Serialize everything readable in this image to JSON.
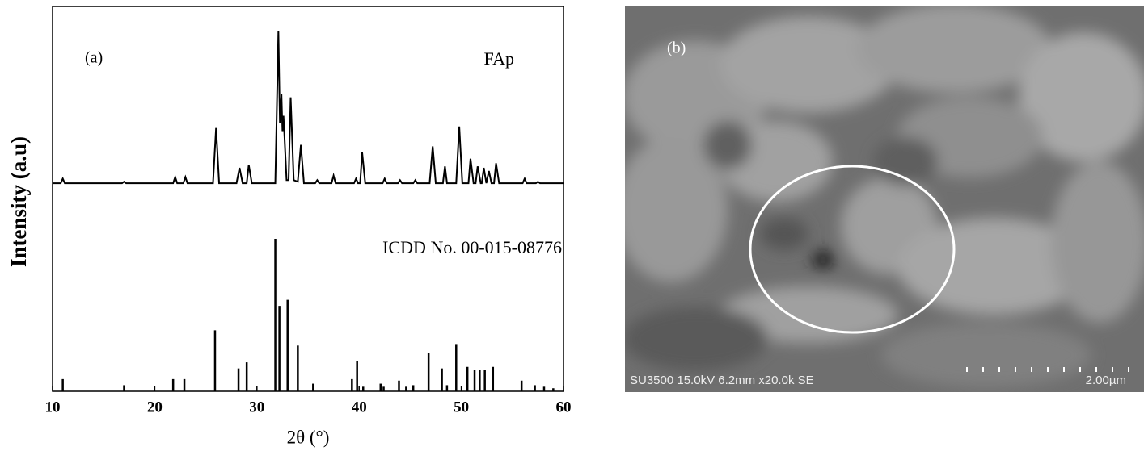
{
  "chart_data": {
    "type": "line",
    "panel_label": "(a)",
    "xlabel": "2θ (°)",
    "ylabel": "Intensity (a.u)",
    "xlim": [
      10,
      60
    ],
    "xticks": [
      10,
      20,
      30,
      40,
      50,
      60
    ],
    "ylim": [
      0,
      100
    ],
    "series": [
      {
        "name": "FAp",
        "type": "line",
        "color": "#000000",
        "x": [
          10,
          10.8,
          11,
          11.2,
          16.8,
          17,
          17.2,
          21.8,
          22,
          22.2,
          22.8,
          23,
          23.2,
          25.7,
          26,
          26.3,
          28.0,
          28.3,
          28.6,
          29.0,
          29.2,
          29.5,
          31.8,
          32.1,
          32.25,
          32.4,
          32.5,
          32.6,
          32.9,
          33.1,
          33.3,
          33.6,
          34.0,
          34.3,
          34.6,
          35.7,
          35.9,
          36.1,
          37.3,
          37.5,
          37.7,
          39.5,
          39.7,
          39.9,
          40.1,
          40.3,
          40.6,
          42.3,
          42.5,
          42.7,
          43.8,
          44.0,
          44.2,
          45.3,
          45.5,
          45.7,
          46.9,
          47.2,
          47.5,
          48.2,
          48.4,
          48.6,
          49.5,
          49.8,
          50.1,
          50.7,
          50.9,
          51.2,
          51.4,
          51.6,
          51.9,
          52.0,
          52.2,
          52.45,
          52.7,
          52.95,
          53.2,
          53.4,
          53.7,
          56.0,
          56.2,
          56.4,
          57.3,
          57.5,
          57.7,
          58.8,
          59.0,
          59.2,
          60
        ],
        "values": [
          1,
          1,
          4,
          1,
          1,
          2,
          1,
          1,
          5,
          1,
          1,
          5,
          1,
          1,
          37,
          1,
          1,
          11,
          1,
          1,
          13,
          1,
          1,
          100,
          40,
          59,
          35,
          45,
          3,
          3,
          57,
          3,
          2,
          26,
          1,
          1,
          3,
          1,
          1,
          6,
          1,
          1,
          4,
          1,
          1,
          21,
          1,
          1,
          4,
          1,
          1,
          3,
          1,
          1,
          3,
          1,
          1,
          25,
          1,
          1,
          12,
          1,
          1,
          38,
          1,
          1,
          17,
          1,
          1,
          12,
          1,
          1,
          11,
          1,
          9,
          1,
          1,
          14,
          1,
          1,
          4,
          1,
          1,
          2,
          1,
          1,
          1,
          1,
          1
        ]
      },
      {
        "name": "ICDD No. 00-015-08776",
        "type": "stick",
        "color": "#000000",
        "x": [
          11.0,
          17.0,
          21.8,
          22.9,
          25.9,
          28.2,
          29.0,
          31.8,
          32.2,
          33.0,
          34.0,
          35.5,
          39.3,
          39.8,
          40.4,
          42.1,
          42.4,
          43.9,
          44.6,
          45.3,
          46.8,
          48.1,
          48.6,
          49.5,
          50.6,
          51.3,
          51.8,
          52.3,
          53.1,
          55.9,
          57.2,
          58.1,
          59.0
        ],
        "values": [
          8,
          4,
          8,
          8,
          40,
          15,
          19,
          100,
          56,
          60,
          30,
          5,
          8,
          20,
          3,
          5,
          3,
          7,
          3,
          4,
          25,
          15,
          4,
          31,
          16,
          14,
          14,
          14,
          16,
          7,
          4,
          3,
          2
        ]
      }
    ]
  },
  "image": {
    "panel_label": "(b)",
    "info": "SU3500 15.0kV 6.2mm x20.0k SE",
    "scale": "2.00µm"
  }
}
